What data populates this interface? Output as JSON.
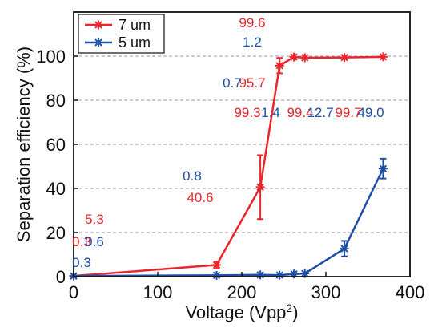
{
  "chart_data": {
    "type": "line",
    "xlabel": "Voltage (Vpp",
    "xlabel_superscript": "2",
    "xlabel_suffix": ")",
    "ylabel": "Separation efficiency (%)",
    "xlim": [
      0,
      400
    ],
    "ylim": [
      0,
      120
    ],
    "x_ticks": [
      "0",
      "100",
      "200",
      "300",
      "400"
    ],
    "x_tick_values": [
      0,
      100,
      200,
      300,
      400
    ],
    "y_ticks": [
      "0",
      "20",
      "40",
      "60",
      "80",
      "100"
    ],
    "y_tick_values": [
      0,
      20,
      40,
      60,
      80,
      100
    ],
    "grid": "horizontal dashed",
    "legend_position": "top-left",
    "series": [
      {
        "name": "7 um",
        "color": "#e8262b",
        "marker": "asterisk",
        "x": [
          0,
          170,
          222,
          245,
          262,
          275,
          322,
          368
        ],
        "y": [
          0.3,
          5.3,
          40.6,
          95.7,
          99.6,
          99.3,
          99.4,
          99.7
        ],
        "yerr": [
          0.5,
          1.5,
          14.5,
          3.5,
          0.5,
          0.5,
          0.5,
          0.5
        ],
        "labels": [
          "0.3",
          "5.3",
          "40.6",
          "95.7",
          "99.6",
          "99.3",
          "99.4",
          "99.7"
        ]
      },
      {
        "name": "5 um",
        "color": "#1d4fa6",
        "marker": "asterisk",
        "x": [
          0,
          170,
          222,
          245,
          262,
          275,
          322,
          368
        ],
        "y": [
          0.3,
          0.6,
          0.8,
          0.7,
          1.2,
          1.4,
          12.7,
          49.0
        ],
        "yerr": [
          0.5,
          0.5,
          0.5,
          0.5,
          0.5,
          0.5,
          3.5,
          4.5
        ],
        "labels": [
          "0.3",
          "0.6",
          "0.8",
          "0.7",
          "1.2",
          "1.4",
          "12.7",
          "49.0"
        ]
      }
    ]
  }
}
